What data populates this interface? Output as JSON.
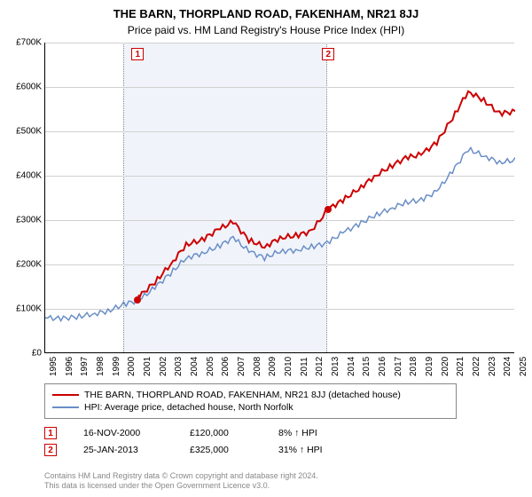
{
  "title": "THE BARN, THORPLAND ROAD, FAKENHAM, NR21 8JJ",
  "subtitle": "Price paid vs. HM Land Registry's House Price Index (HPI)",
  "chart": {
    "type": "line",
    "background_color": "#ffffff",
    "grid_color": "#d0d0d0",
    "ylim": [
      0,
      700000
    ],
    "ytick_step": 100000,
    "ytick_labels": [
      "£0",
      "£100K",
      "£200K",
      "£300K",
      "£400K",
      "£500K",
      "£600K",
      "£700K"
    ],
    "x_start": 1995,
    "x_end": 2025,
    "xtick_step": 1,
    "shade_band_x": [
      2000,
      2013
    ],
    "series": [
      {
        "name": "THE BARN, THORPLAND ROAD, FAKENHAM, NR21 8JJ (detached house)",
        "color": "#cc0000",
        "width": 2,
        "x": [
          2000.9,
          2001,
          2002,
          2003,
          2004,
          2005,
          2006,
          2007,
          2008,
          2009,
          2010,
          2011,
          2012,
          2013.07,
          2014,
          2015,
          2016,
          2017,
          2018,
          2019,
          2020,
          2021,
          2022,
          2023,
          2024,
          2025
        ],
        "y": [
          120000,
          128000,
          160000,
          200000,
          245000,
          255000,
          278000,
          296000,
          255000,
          240000,
          260000,
          265000,
          275000,
          325000,
          345000,
          370000,
          398000,
          420000,
          440000,
          448000,
          475000,
          530000,
          590000,
          570000,
          540000,
          545000
        ]
      },
      {
        "name": "HPI: Average price, detached house, North Norfolk",
        "color": "#6a8ec7",
        "width": 1.5,
        "x": [
          1995,
          1996,
          1997,
          1998,
          1999,
          2000,
          2001,
          2002,
          2003,
          2004,
          2005,
          2006,
          2007,
          2008,
          2009,
          2010,
          2011,
          2012,
          2013,
          2014,
          2015,
          2016,
          2017,
          2018,
          2019,
          2020,
          2021,
          2022,
          2023,
          2024,
          2025
        ],
        "y": [
          80000,
          78000,
          82000,
          88000,
          95000,
          110000,
          120000,
          148000,
          180000,
          215000,
          225000,
          240000,
          260000,
          230000,
          215000,
          230000,
          232000,
          240000,
          248000,
          272000,
          290000,
          310000,
          325000,
          340000,
          345000,
          365000,
          410000,
          460000,
          445000,
          430000,
          435000
        ]
      }
    ],
    "markers": [
      {
        "idx": "1",
        "x": 2000.9,
        "y": 120000,
        "color": "#cc0000"
      },
      {
        "idx": "2",
        "x": 2013.07,
        "y": 325000,
        "color": "#cc0000"
      }
    ]
  },
  "legend": {
    "items": [
      {
        "color": "#cc0000",
        "label": "THE BARN, THORPLAND ROAD, FAKENHAM, NR21 8JJ (detached house)"
      },
      {
        "color": "#6a8ec7",
        "label": "HPI: Average price, detached house, North Norfolk"
      }
    ]
  },
  "sales": [
    {
      "idx": "1",
      "date": "16-NOV-2000",
      "price": "£120,000",
      "hpi": "8% ↑ HPI"
    },
    {
      "idx": "2",
      "date": "25-JAN-2013",
      "price": "£325,000",
      "hpi": "31% ↑ HPI"
    }
  ],
  "footer_line1": "Contains HM Land Registry data © Crown copyright and database right 2024.",
  "footer_line2": "This data is licensed under the Open Government Licence v3.0."
}
